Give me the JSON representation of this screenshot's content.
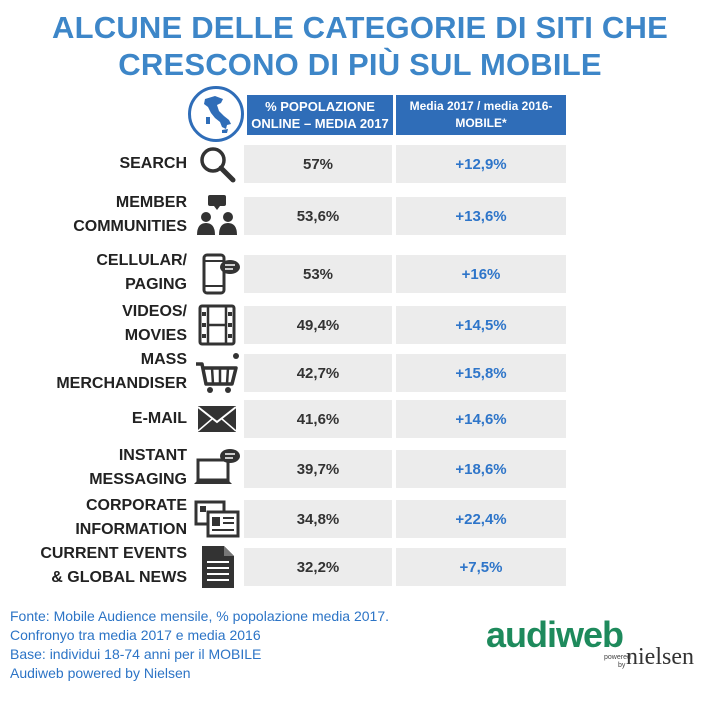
{
  "title_line1": "ALCUNE DELLE CATEGORIE DI SITI CHE",
  "title_line2": "CRESCONO DI PIÙ SUL MOBILE",
  "header": {
    "col1_line1": "% POPOLAZIONE",
    "col1_line2": "ONLINE – MEDIA 2017",
    "col2_line1": "Media 2017 / media 2016-",
    "col2_line2": "MOBILE*"
  },
  "chart_data": {
    "type": "table",
    "columns": [
      "% POPOLAZIONE ONLINE – MEDIA 2017",
      "Media 2017 / media 2016- MOBILE*"
    ],
    "rows": [
      {
        "label": [
          "SEARCH"
        ],
        "icon": "search-icon",
        "pop": "57%",
        "growth": "+12,9%"
      },
      {
        "label": [
          "MEMBER",
          "COMMUNITIES"
        ],
        "icon": "people-chat-icon",
        "pop": "53,6%",
        "growth": "+13,6%"
      },
      {
        "label": [
          "CELLULAR/",
          "PAGING"
        ],
        "icon": "phone-message-icon",
        "pop": "53%",
        "growth": "+16%"
      },
      {
        "label": [
          "VIDEOS/",
          "MOVIES"
        ],
        "icon": "film-icon",
        "pop": "49,4%",
        "growth": "+14,5%"
      },
      {
        "label": [
          "MASS",
          "MERCHANDISER"
        ],
        "icon": "shopping-cart-icon",
        "pop": "42,7%",
        "growth": "+15,8%"
      },
      {
        "label": [
          "E-MAIL"
        ],
        "icon": "envelope-icon",
        "pop": "41,6%",
        "growth": "+14,6%"
      },
      {
        "label": [
          "INSTANT",
          "MESSAGING"
        ],
        "icon": "laptop-chat-icon",
        "pop": "39,7%",
        "growth": "+18,6%"
      },
      {
        "label": [
          "CORPORATE",
          "INFORMATION"
        ],
        "icon": "business-cards-icon",
        "pop": "34,8%",
        "growth": "+22,4%"
      },
      {
        "label": [
          "CURRENT EVENTS",
          "& GLOBAL NEWS"
        ],
        "icon": "document-icon",
        "pop": "32,2%",
        "growth": "+7,5%"
      }
    ]
  },
  "footer": {
    "line1": "Fonte: Mobile Audience mensile, % popolazione media 2017.",
    "line2": "Confronyo tra media 2017 e media 2016",
    "line3": "Base: individui 18-74 anni per il MOBILE",
    "line4": "Audiweb powered by Nielsen"
  },
  "logo": {
    "main": "audiweb",
    "powered": "powered",
    "by": "by",
    "brand": "nielsen"
  },
  "colors": {
    "title": "#3d86c8",
    "header_bg": "#2f6db8",
    "growth_text": "#2e75c9",
    "cell_bg": "#ececec"
  }
}
